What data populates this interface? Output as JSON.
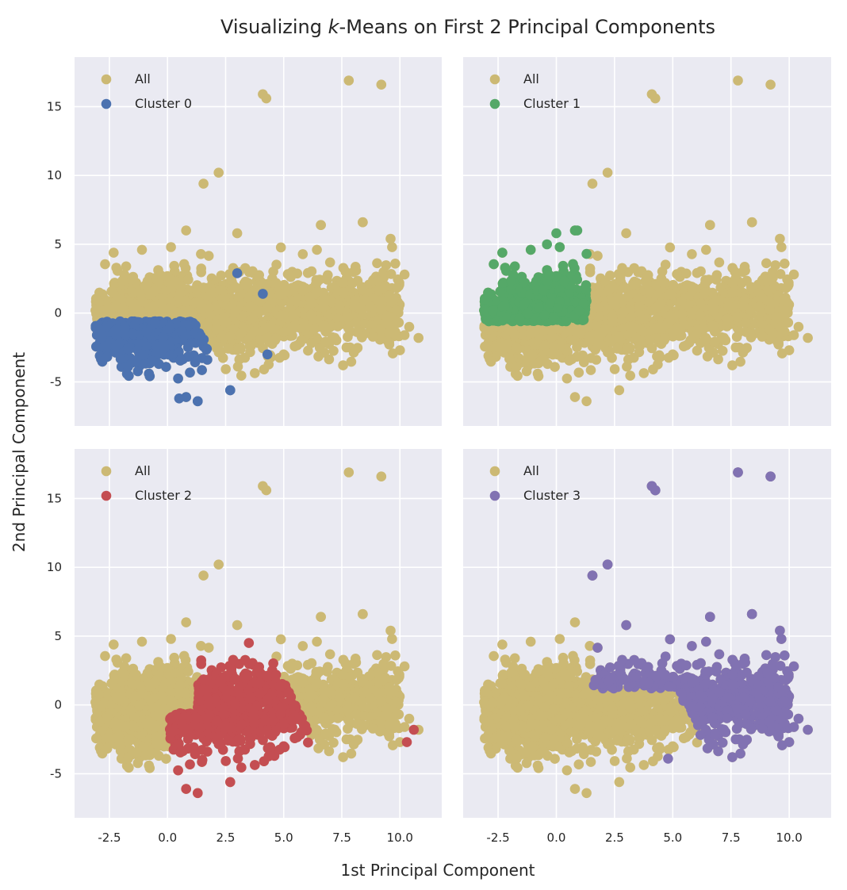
{
  "chart_data": {
    "type": "scatter",
    "title": "Visualizing k-Means on First 2 Principal Components",
    "title_parts": [
      "Visualizing ",
      "k",
      "-Means on First 2 Principal Components"
    ],
    "xlabel": "1st Principal Component",
    "ylabel": "2nd Principal Component",
    "xlim": [
      -4.0,
      11.8
    ],
    "ylim": [
      -8.2,
      18.6
    ],
    "xticks": [
      -2.5,
      0.0,
      2.5,
      5.0,
      7.5,
      10.0
    ],
    "xtick_labels": [
      "-2.5",
      "0.0",
      "2.5",
      "5.0",
      "7.5",
      "10.0"
    ],
    "yticks": [
      -5,
      0,
      5,
      10,
      15
    ],
    "ytick_labels": [
      "-5",
      "0",
      "5",
      "10",
      "15"
    ],
    "grid": true,
    "legend_placement": "top-left",
    "background_color": "#eaeaf2",
    "all_color": "#ccb974",
    "all_label": "All",
    "outliers": [
      [
        4.1,
        15.9
      ],
      [
        4.25,
        15.6
      ],
      [
        7.8,
        16.9
      ],
      [
        9.2,
        16.6
      ],
      [
        1.55,
        9.4
      ],
      [
        2.2,
        10.2
      ],
      [
        6.6,
        6.4
      ],
      [
        8.4,
        6.6
      ]
    ],
    "panels": [
      {
        "cluster_label": "Cluster 0",
        "color": "#4c72b0",
        "region": "left-lower",
        "extras": [
          [
            3.0,
            2.9
          ],
          [
            4.1,
            1.4
          ],
          [
            4.3,
            -3.0
          ],
          [
            2.7,
            -5.6
          ],
          [
            0.5,
            -6.2
          ],
          [
            1.3,
            -6.4
          ]
        ]
      },
      {
        "cluster_label": "Cluster 1",
        "color": "#55a868",
        "region": "left-upper",
        "extras": [
          [
            0.9,
            6.0
          ],
          [
            0.0,
            5.8
          ],
          [
            -0.4,
            5.0
          ],
          [
            1.3,
            4.3
          ]
        ]
      },
      {
        "cluster_label": "Cluster 2",
        "color": "#c44e52",
        "region": "middle",
        "extras": [
          [
            3.5,
            4.5
          ],
          [
            10.3,
            -2.7
          ],
          [
            10.6,
            -1.8
          ],
          [
            4.6,
            -3.7
          ],
          [
            1.5,
            -4.0
          ]
        ]
      },
      {
        "cluster_label": "Cluster 3",
        "color": "#8172b2",
        "region": "right",
        "extras": [
          [
            4.1,
            15.9
          ],
          [
            4.25,
            15.6
          ],
          [
            7.8,
            16.9
          ],
          [
            9.2,
            16.6
          ],
          [
            1.55,
            9.4
          ],
          [
            2.2,
            10.2
          ],
          [
            6.6,
            6.4
          ],
          [
            8.4,
            6.6
          ],
          [
            4.8,
            -3.9
          ]
        ]
      }
    ]
  }
}
